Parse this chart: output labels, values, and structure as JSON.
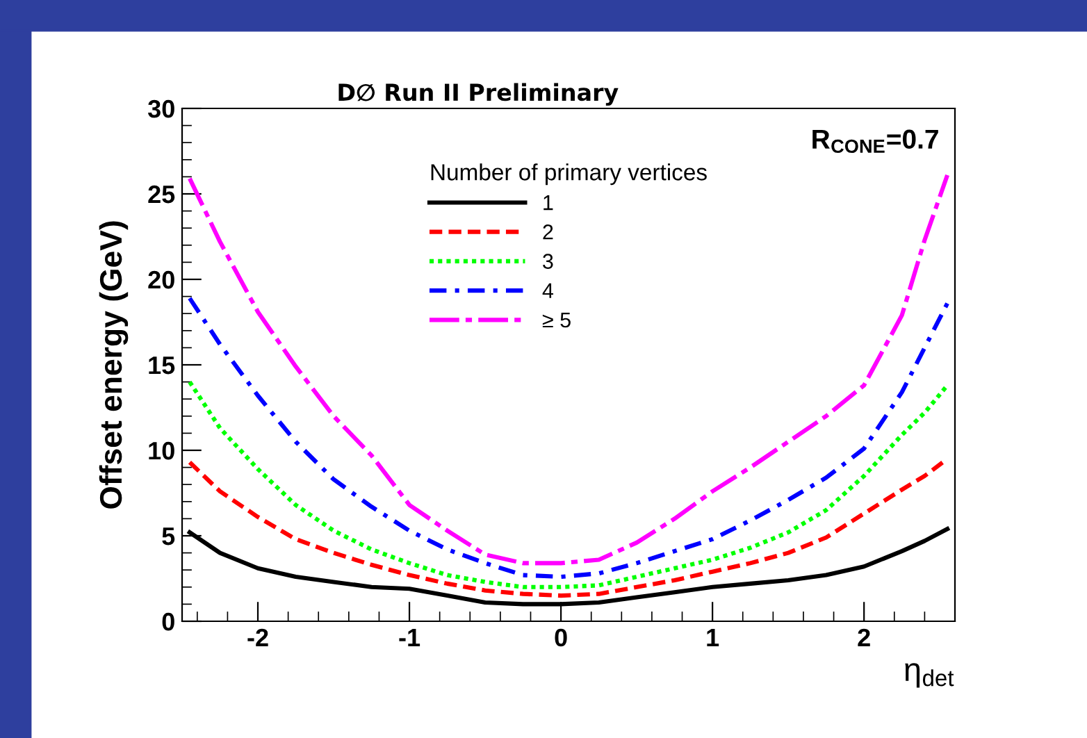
{
  "chart_data": {
    "type": "line",
    "title": "D∅ Run II Preliminary",
    "xlabel": "η$_{det}$",
    "ylabel": "Offset energy (GeV)",
    "legend_title": "Number of primary vertices",
    "legend": "top",
    "annotations": [
      "R$_{CONE}$=0.7"
    ],
    "x": [
      -2.45,
      -2.25,
      -2,
      -1.75,
      -1.5,
      -1.25,
      -1,
      -0.75,
      -0.5,
      -0.25,
      0,
      0.25,
      0.5,
      0.75,
      1,
      1.25,
      1.5,
      1.75,
      2,
      2.25,
      2.4,
      2.55
    ],
    "xlim": [
      -2.5,
      2.6
    ],
    "xticks": [
      -2,
      -1,
      0,
      1,
      2
    ],
    "ylim": [
      0,
      30
    ],
    "yticks": [
      0,
      5,
      10,
      15,
      20,
      25,
      30
    ],
    "grid": false,
    "series": [
      {
        "name": "1",
        "color": "#000000",
        "line_style": "solid",
        "values": [
          5.2,
          4.0,
          3.1,
          2.6,
          2.3,
          2.0,
          1.9,
          1.5,
          1.1,
          1.0,
          1.0,
          1.1,
          1.4,
          1.7,
          2.0,
          2.2,
          2.4,
          2.7,
          3.2,
          4.1,
          4.7,
          5.4
        ]
      },
      {
        "name": "2",
        "color": "#ff0000",
        "line_style": "dashed",
        "values": [
          9.3,
          7.6,
          6.1,
          4.8,
          4.0,
          3.3,
          2.7,
          2.2,
          1.8,
          1.6,
          1.5,
          1.6,
          2.0,
          2.4,
          2.9,
          3.4,
          4.0,
          4.9,
          6.3,
          7.7,
          8.5,
          9.5
        ]
      },
      {
        "name": "3",
        "color": "#00ff00",
        "line_style": "dotted",
        "values": [
          14.0,
          11.3,
          8.9,
          6.8,
          5.3,
          4.2,
          3.4,
          2.7,
          2.3,
          2.0,
          2.0,
          2.1,
          2.6,
          3.1,
          3.6,
          4.3,
          5.2,
          6.5,
          8.5,
          10.9,
          12.2,
          13.8
        ]
      },
      {
        "name": "4",
        "color": "#0000ff",
        "line_style": "dashdot",
        "values": [
          18.9,
          16.2,
          13.2,
          10.5,
          8.3,
          6.7,
          5.3,
          4.2,
          3.4,
          2.7,
          2.6,
          2.8,
          3.4,
          4.1,
          4.8,
          5.9,
          7.1,
          8.4,
          10.1,
          13.4,
          16.0,
          18.6
        ]
      },
      {
        "name": "≥ 5",
        "color": "#ff00ff",
        "line_style": "longdashdot",
        "values": [
          25.9,
          22.2,
          18.1,
          14.9,
          12.0,
          9.7,
          6.8,
          5.3,
          3.9,
          3.4,
          3.4,
          3.6,
          4.6,
          6.0,
          7.6,
          9.0,
          10.5,
          12.0,
          13.8,
          17.9,
          22.3,
          26.1
        ]
      }
    ]
  }
}
